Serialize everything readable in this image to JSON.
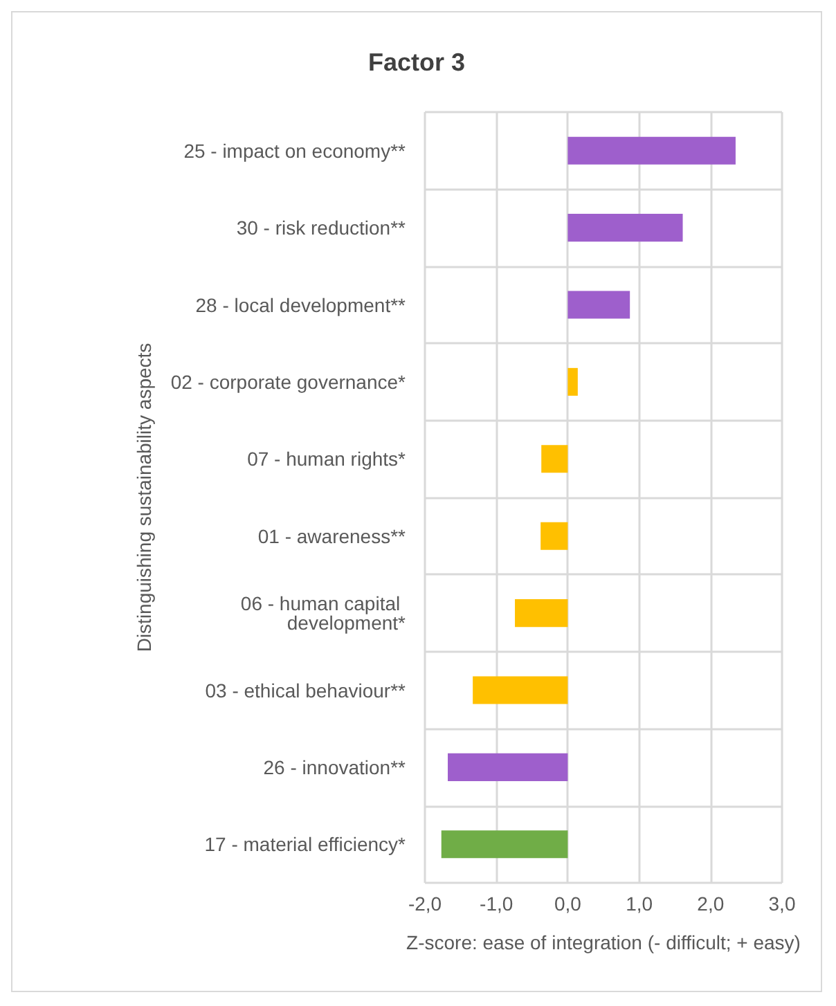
{
  "chart_data": {
    "type": "bar",
    "orientation": "horizontal",
    "title": "Factor 3",
    "xlabel": "Z-score: ease of integration (- difficult; + easy)",
    "ylabel": "Distinguishing sustainability aspects",
    "categories": [
      "25 - impact on economy**",
      "30 - risk reduction**",
      "28 - local development**",
      "02 - corporate governance*",
      "07 - human rights*",
      "01 - awareness**",
      "06 - human capital development*",
      "03 - ethical behaviour**",
      "26 - innovation**",
      "17 - material efficiency*"
    ],
    "values": [
      2.35,
      1.61,
      0.87,
      0.14,
      -0.37,
      -0.38,
      -0.74,
      -1.33,
      -1.68,
      -1.77
    ],
    "colors": [
      "#9e5fcc",
      "#9e5fcc",
      "#9e5fcc",
      "#ffc000",
      "#ffc000",
      "#ffc000",
      "#ffc000",
      "#ffc000",
      "#9e5fcc",
      "#70ad47"
    ],
    "xlim": [
      -2,
      3
    ],
    "xticks": [
      {
        "value": -2,
        "label": "-2,0"
      },
      {
        "value": -1,
        "label": "-1,0"
      },
      {
        "value": 0,
        "label": "0,0"
      },
      {
        "value": 1,
        "label": "1,0"
      },
      {
        "value": 2,
        "label": "2,0"
      },
      {
        "value": 3,
        "label": "3,0"
      }
    ],
    "grid": true
  }
}
